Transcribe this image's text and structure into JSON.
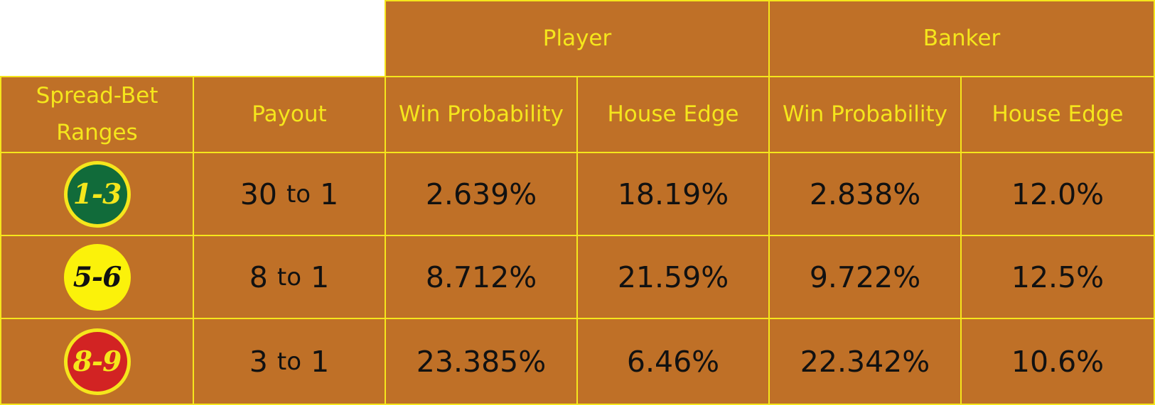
{
  "table": {
    "group_headers": {
      "player": "Player",
      "banker": "Banker"
    },
    "column_headers": {
      "ranges": "Spread-Bet Ranges",
      "payout": "Payout",
      "player_win": "Win Probability",
      "player_edge": "House Edge",
      "banker_win": "Win Probability",
      "banker_edge": "House Edge"
    },
    "rows": [
      {
        "range": "1-3",
        "badge_color": "#116b3a",
        "payout": {
          "a": "30",
          "to": "to",
          "b": "1"
        },
        "player_win": "2.639%",
        "player_edge": "18.19%",
        "banker_win": "2.838%",
        "banker_edge": "12.0%"
      },
      {
        "range": "5-6",
        "badge_color": "#fbf20a",
        "payout": {
          "a": "8",
          "to": "to",
          "b": "1"
        },
        "player_win": "8.712%",
        "player_edge": "21.59%",
        "banker_win": "9.722%",
        "banker_edge": "12.5%"
      },
      {
        "range": "8-9",
        "badge_color": "#d22323",
        "payout": {
          "a": "3",
          "to": "to",
          "b": "1"
        },
        "player_win": "23.385%",
        "player_edge": "6.46%",
        "banker_win": "22.342%",
        "banker_edge": "10.6%"
      }
    ]
  },
  "colors": {
    "cell_background": "#bf7027",
    "border_and_header_text": "#f5e61c",
    "value_text": "#111111"
  },
  "chart_data": {
    "type": "table",
    "column_groups": [
      {
        "name": "Player",
        "columns": [
          "Win Probability",
          "House Edge"
        ]
      },
      {
        "name": "Banker",
        "columns": [
          "Win Probability",
          "House Edge"
        ]
      }
    ],
    "columns": [
      "Spread-Bet Ranges",
      "Payout",
      "Player Win Probability",
      "Player House Edge",
      "Banker Win Probability",
      "Banker House Edge"
    ],
    "rows": [
      [
        "1-3",
        "30 to 1",
        "2.639%",
        "18.19%",
        "2.838%",
        "12.0%"
      ],
      [
        "5-6",
        "8 to 1",
        "8.712%",
        "21.59%",
        "9.722%",
        "12.5%"
      ],
      [
        "8-9",
        "3 to 1",
        "23.385%",
        "6.46%",
        "22.342%",
        "10.6%"
      ]
    ]
  }
}
